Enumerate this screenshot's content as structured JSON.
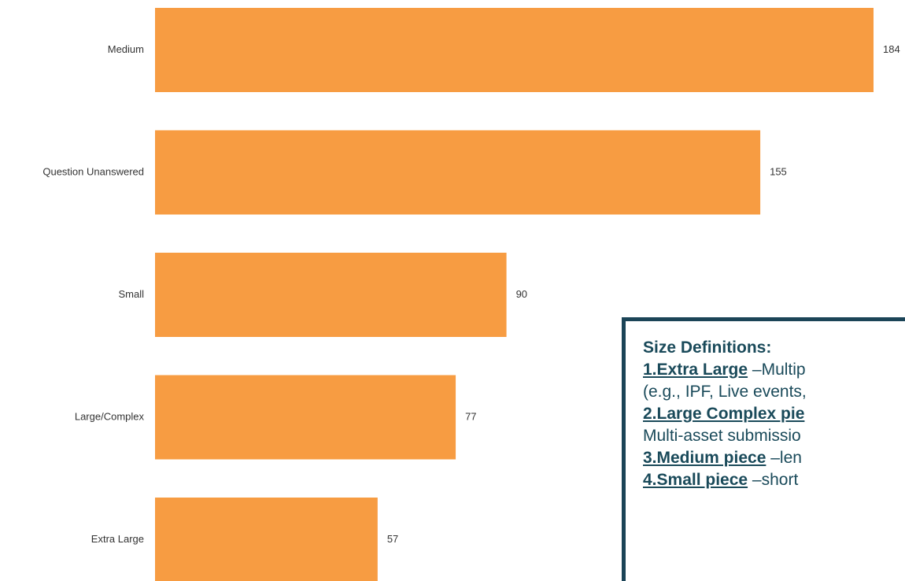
{
  "chart_data": {
    "type": "bar",
    "orientation": "horizontal",
    "color": "#f79c42",
    "categories": [
      "Medium",
      "Question Unanswered",
      "Small",
      "Large/Complex",
      "Extra Large"
    ],
    "values": [
      184,
      155,
      90,
      77,
      57
    ]
  },
  "definitions": {
    "title": "Size Definitions:",
    "lines": [
      {
        "term": "1.Extra Large",
        "text": " –Multip"
      },
      {
        "text": "(e.g., IPF, Live events,"
      },
      {
        "term": "2.Large Complex pie"
      },
      {
        "text": "Multi-asset submissio"
      },
      {
        "term": "3.Medium piece",
        "text": " –len"
      },
      {
        "term": "4.Small piece",
        "text": " –short"
      }
    ]
  }
}
